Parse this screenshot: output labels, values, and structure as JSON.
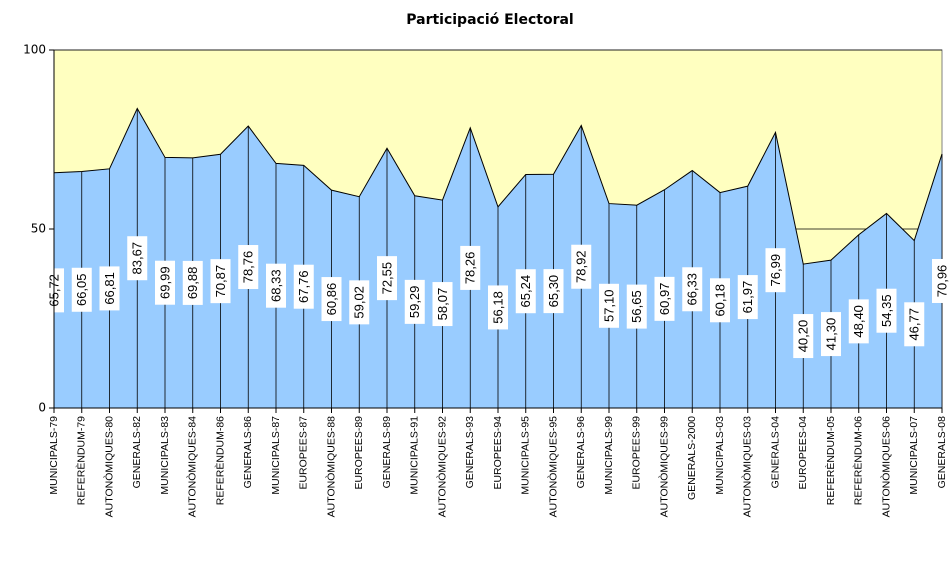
{
  "chart_data": {
    "type": "area",
    "title": "Participació Electoral",
    "categories": [
      "MUNICIPALS-79",
      "REFERÈNDUM-79",
      "AUTONÒMIQUES-80",
      "GENERALS-82",
      "MUNICIPALS-83",
      "AUTONÒMIQUES-84",
      "REFERÈNDUM-86",
      "GENERALS-86",
      "MUNICIPALS-87",
      "EUROPEES-87",
      "AUTONÒMIQUES-88",
      "EUROPEES-89",
      "GENERALS-89",
      "MUNICIPALS-91",
      "AUTONÒMIQUES-92",
      "GENERALS-93",
      "EUROPEES-94",
      "MUNICIPALS-95",
      "AUTONÒMIQUES-95",
      "GENERALS-96",
      "MUNICIPALS-99",
      "EUROPEES-99",
      "AUTONÒMIQUES-99",
      "GENERALS-2000",
      "MUNICIPALS-03",
      "AUTONÒMIQUES-03",
      "GENERALS-04",
      "EUROPEES-04",
      "REFERÈNDUM-05",
      "REFERÈNDUM-06",
      "AUTONÒMIQUES-06",
      "MUNICIPALS-07",
      "GENERALS-08"
    ],
    "values": [
      65.72,
      66.05,
      66.81,
      83.67,
      69.99,
      69.88,
      70.87,
      78.76,
      68.33,
      67.76,
      60.86,
      59.02,
      72.55,
      59.29,
      58.07,
      78.26,
      56.18,
      65.24,
      65.3,
      78.92,
      57.1,
      56.65,
      60.97,
      66.33,
      60.18,
      61.97,
      76.99,
      40.2,
      41.3,
      48.4,
      54.35,
      46.77,
      70.96
    ],
    "value_labels": [
      "65,72",
      "66,05",
      "66,81",
      "83,67",
      "69,99",
      "69,88",
      "70,87",
      "78,76",
      "68,33",
      "67,76",
      "60,86",
      "59,02",
      "72,55",
      "59,29",
      "58,07",
      "78,26",
      "56,18",
      "65,24",
      "65,30",
      "78,92",
      "57,10",
      "56,65",
      "60,97",
      "66,33",
      "60,18",
      "61,97",
      "76,99",
      "40,20",
      "41,30",
      "48,40",
      "54,35",
      "46,77",
      "70,96"
    ],
    "color": "#99ccff",
    "background": "#ffffc0",
    "ylim": [
      0,
      100
    ],
    "yticks": [
      0,
      50,
      100
    ],
    "grid": true
  }
}
